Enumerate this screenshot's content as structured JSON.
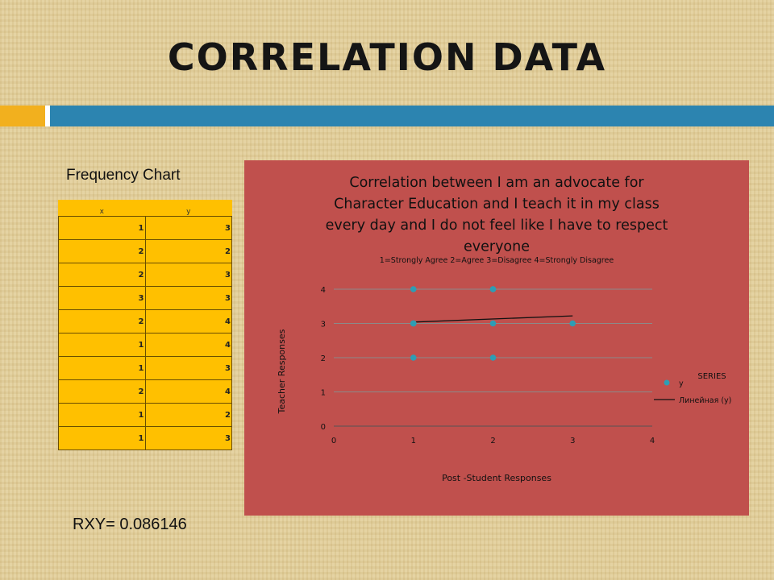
{
  "slide": {
    "title": "CORRELATION DATA",
    "frequency_label": "Frequency Chart",
    "rxy_label": "RXY= 0.086146",
    "colors": {
      "accent_gold": "#f2b01e",
      "accent_blue": "#2c84b0",
      "table_fill": "#ffc000",
      "chart_bg": "#c0504d"
    }
  },
  "table": {
    "headers": [
      "x",
      "y"
    ],
    "rows": [
      [
        "1",
        "3"
      ],
      [
        "2",
        "2"
      ],
      [
        "2",
        "3"
      ],
      [
        "3",
        "3"
      ],
      [
        "2",
        "4"
      ],
      [
        "1",
        "4"
      ],
      [
        "1",
        "3"
      ],
      [
        "2",
        "4"
      ],
      [
        "1",
        "2"
      ],
      [
        "1",
        "3"
      ]
    ]
  },
  "chart_data": {
    "type": "scatter",
    "title": "Correlation between I am an advocate for Character Education and I teach it in my class every day and I do not feel like I have to respect everyone",
    "title_lines": [
      "Correlation between I am an advocate for",
      "Character Education and I teach it in my class",
      "every day and I do not feel like I have to respect",
      "everyone"
    ],
    "subtitle": "1=Strongly Agree 2=Agree 3=Disagree 4=Strongly Disagree",
    "xlabel": "Post -Student Responses",
    "ylabel": "Teacher Responses",
    "xlim": [
      0,
      4
    ],
    "ylim": [
      0,
      4
    ],
    "x_ticks": [
      "0",
      "1",
      "2",
      "3",
      "4"
    ],
    "y_ticks": [
      "0",
      "1",
      "2",
      "3",
      "4"
    ],
    "grid": "horizontal",
    "series": [
      {
        "name": "y",
        "color": "#2e9db4",
        "points": [
          [
            1,
            3
          ],
          [
            2,
            2
          ],
          [
            2,
            3
          ],
          [
            3,
            3
          ],
          [
            2,
            4
          ],
          [
            1,
            4
          ],
          [
            1,
            3
          ],
          [
            2,
            4
          ],
          [
            1,
            2
          ],
          [
            1,
            3
          ]
        ]
      }
    ],
    "trendline": {
      "name": "Линейная (y)",
      "x": [
        1,
        3
      ],
      "y": [
        3.04,
        3.22
      ]
    },
    "legend": {
      "title": "SERIES",
      "position": "right"
    }
  }
}
